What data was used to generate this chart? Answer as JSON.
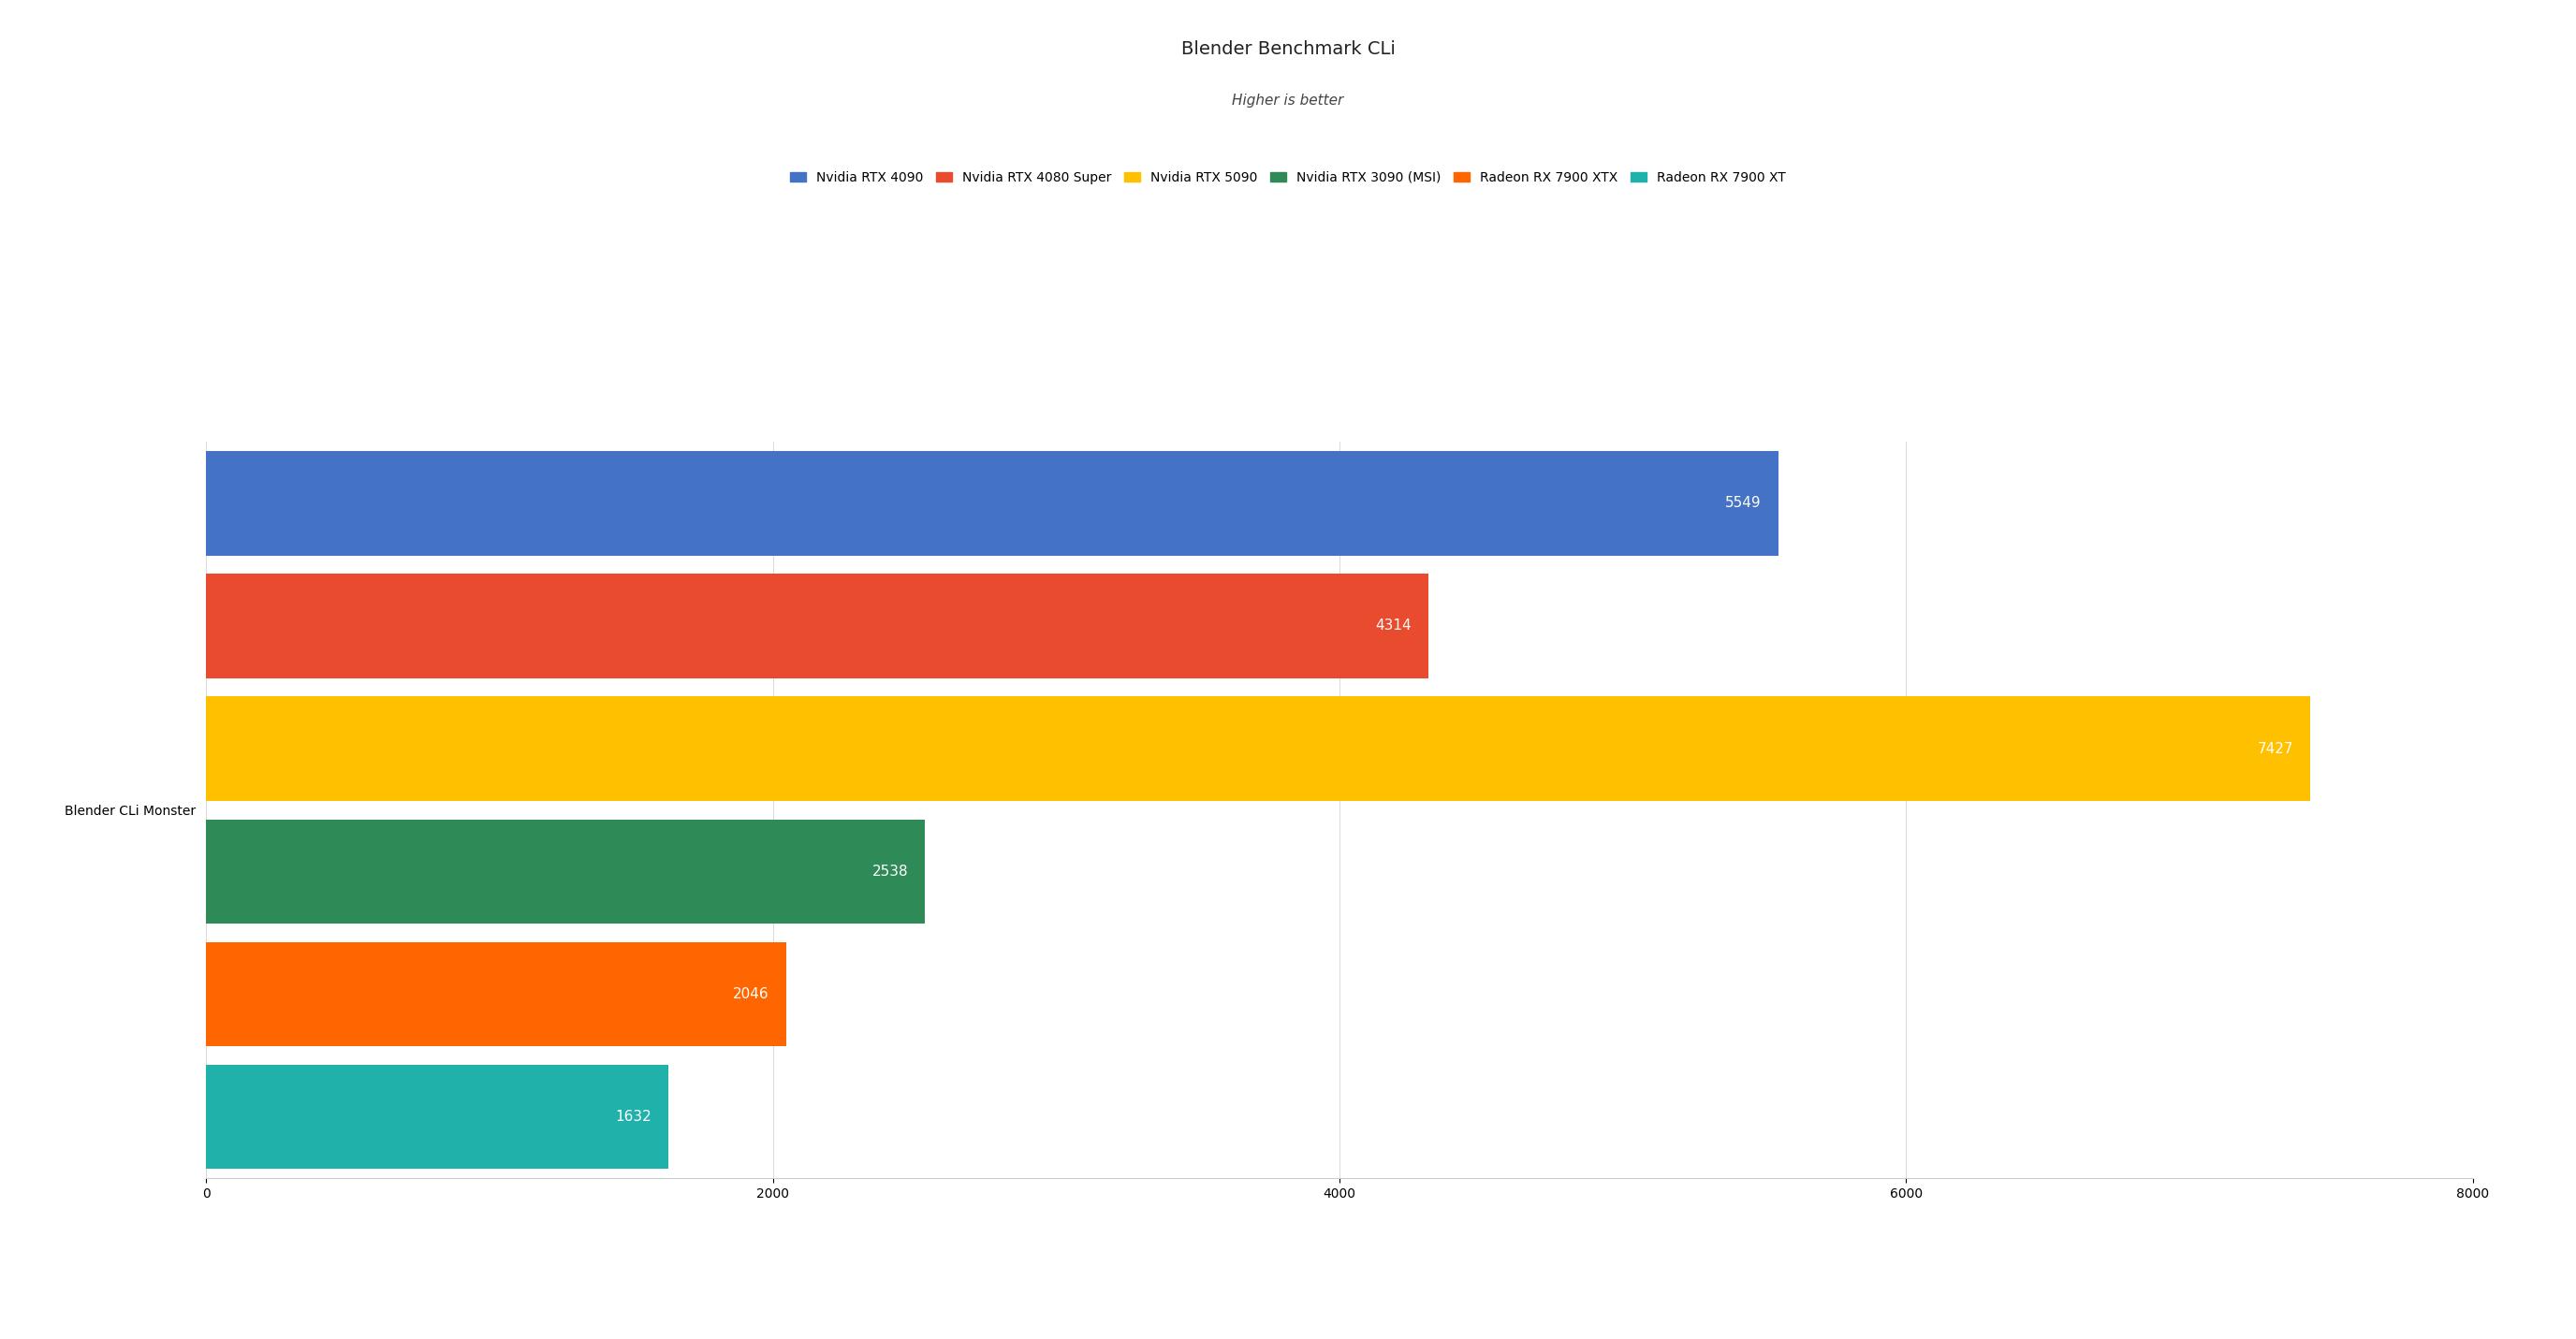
{
  "title": "Blender Benchmark CLi",
  "subtitle": "Higher is better",
  "category": "Blender CLi Monster",
  "series": [
    {
      "label": "Nvidia RTX 4090",
      "value": 5549,
      "color": "#4472C4"
    },
    {
      "label": "Nvidia RTX 4080 Super",
      "value": 4314,
      "color": "#E84B2E"
    },
    {
      "label": "Nvidia RTX 5090",
      "value": 7427,
      "color": "#FFC000"
    },
    {
      "label": "Nvidia RTX 3090 (MSI)",
      "value": 2538,
      "color": "#2E8B57"
    },
    {
      "label": "Radeon RX 7900 XTX",
      "value": 2046,
      "color": "#FF6600"
    },
    {
      "label": "Radeon RX 7900 XT",
      "value": 1632,
      "color": "#20B2AA"
    }
  ],
  "xlim": [
    0,
    8000
  ],
  "xticks": [
    0,
    2000,
    4000,
    6000,
    8000
  ],
  "background_color": "#ffffff",
  "bar_height": 0.85,
  "value_label_color": "#ffffff",
  "value_label_fontsize": 11,
  "title_fontsize": 14,
  "subtitle_fontsize": 11,
  "axis_label_fontsize": 10,
  "legend_fontsize": 10,
  "ylabel_fontsize": 10
}
